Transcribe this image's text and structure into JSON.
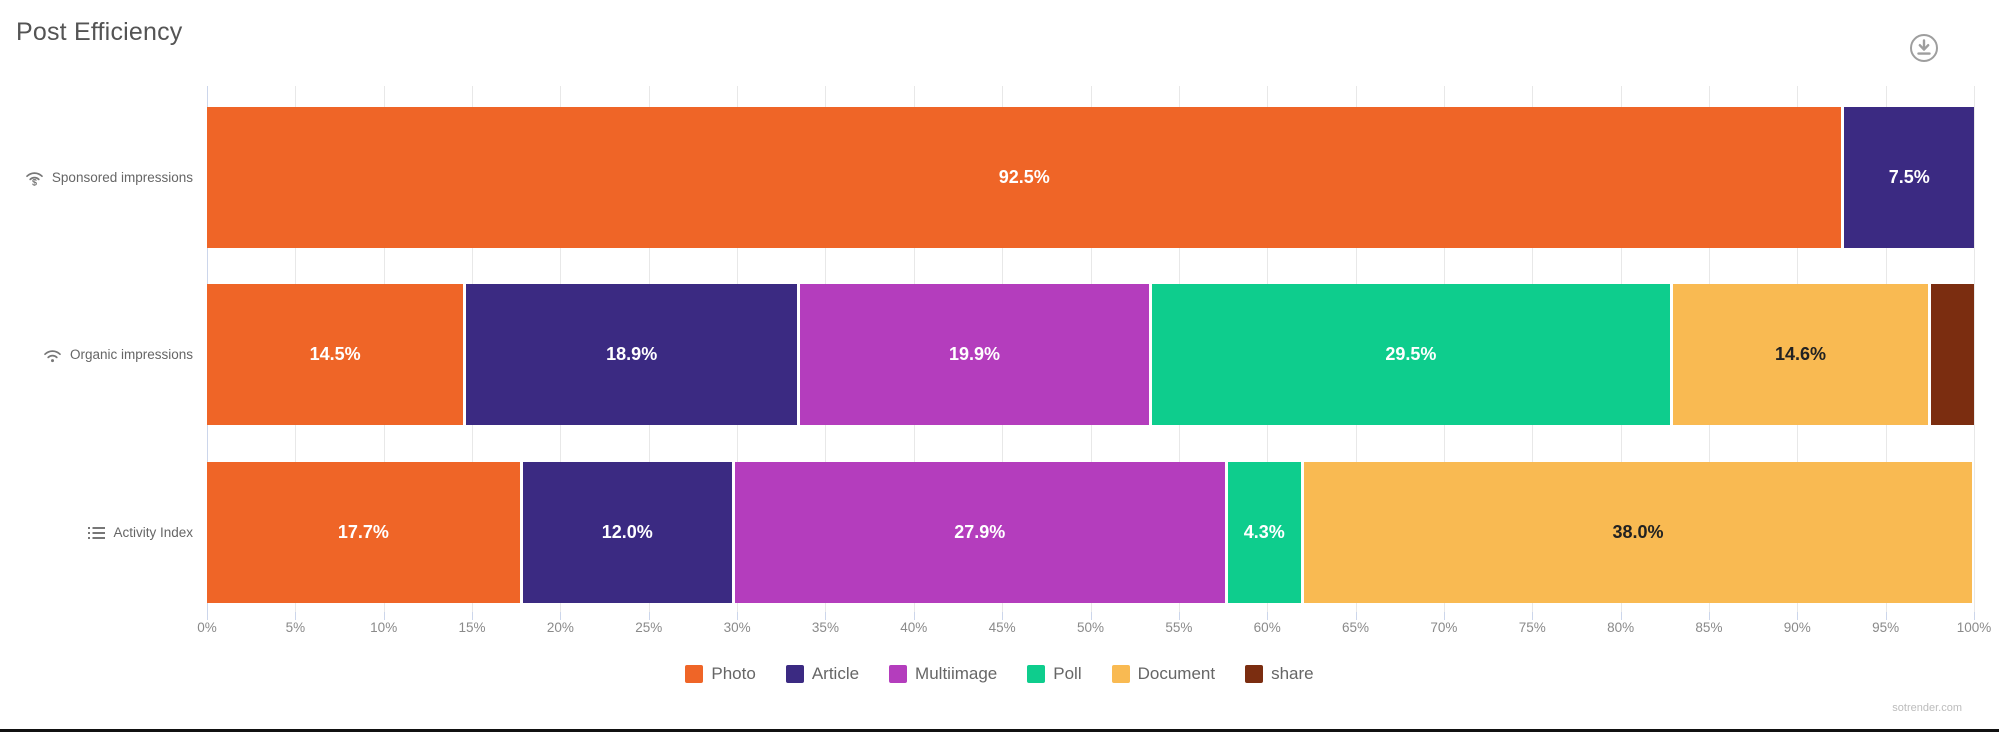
{
  "title": "Post Efficiency",
  "watermark": "sotrender.com",
  "toolbar": {
    "download_icon": "download-icon"
  },
  "chart_data": {
    "type": "bar",
    "orientation": "horizontal",
    "stacked": true,
    "title": "Post Efficiency",
    "xlabel": "",
    "ylabel": "",
    "xlim": [
      0,
      100
    ],
    "x_tick_step": 5,
    "x_tick_suffix": "%",
    "grid": true,
    "legend_position": "bottom",
    "categories": [
      {
        "label": "Sponsored impressions",
        "icon": "wifi-dollar-icon"
      },
      {
        "label": "Organic impressions",
        "icon": "wifi-icon"
      },
      {
        "label": "Activity Index",
        "icon": "list-icon"
      }
    ],
    "series": [
      {
        "name": "Photo",
        "color": "#ef6527",
        "label_color": "#ffffff",
        "values": [
          92.5,
          14.5,
          17.7
        ],
        "labels": [
          "92.5%",
          "14.5%",
          "17.7%"
        ]
      },
      {
        "name": "Article",
        "color": "#3b2a82",
        "label_color": "#ffffff",
        "values": [
          7.5,
          18.9,
          12.0
        ],
        "labels": [
          "7.5%",
          "18.9%",
          "12.0%"
        ]
      },
      {
        "name": "Multiimage",
        "color": "#b43dbd",
        "label_color": "#ffffff",
        "values": [
          0,
          19.9,
          27.9
        ],
        "labels": [
          "",
          "19.9%",
          "27.9%"
        ]
      },
      {
        "name": "Poll",
        "color": "#0ecd8d",
        "label_color": "#ffffff",
        "values": [
          0,
          29.5,
          4.3
        ],
        "labels": [
          "",
          "29.5%",
          "4.3%"
        ]
      },
      {
        "name": "Document",
        "color": "#f9ba52",
        "label_color": "#222222",
        "values": [
          0,
          14.6,
          38.0
        ],
        "labels": [
          "",
          "14.6%",
          "38.0%"
        ]
      },
      {
        "name": "share",
        "color": "#7b2d10",
        "label_color": "#ffffff",
        "values": [
          0,
          2.6,
          0
        ],
        "labels": [
          "",
          "",
          ""
        ]
      }
    ]
  }
}
